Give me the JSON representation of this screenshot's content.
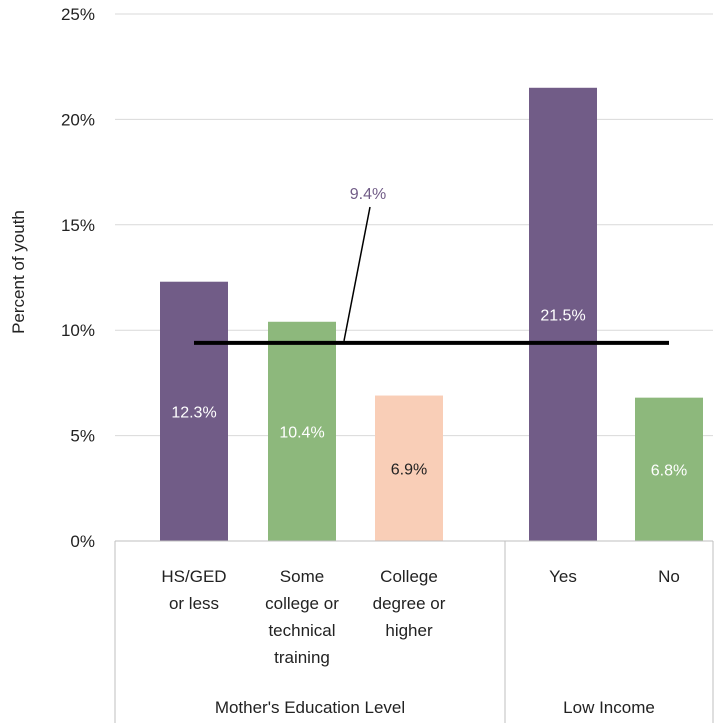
{
  "chart_data": {
    "type": "bar",
    "ylabel": "Percent of youth",
    "ylim": [
      0,
      25
    ],
    "y_ticks": [
      "0%",
      "5%",
      "10%",
      "15%",
      "20%",
      "25%"
    ],
    "grid": true,
    "groups": [
      {
        "label": "Mother's Education Level",
        "categories": [
          {
            "lines": [
              "HS/GED",
              "or less"
            ],
            "value": 12.3,
            "value_label": "12.3%",
            "color": "#715c87",
            "label_color": "#ffffff"
          },
          {
            "lines": [
              "Some",
              "college or",
              "technical",
              "training"
            ],
            "value": 10.4,
            "value_label": "10.4%",
            "color": "#8db87c",
            "label_color": "#ffffff"
          },
          {
            "lines": [
              "College",
              "degree or",
              "higher"
            ],
            "value": 6.9,
            "value_label": "6.9%",
            "color": "#f9ceb7",
            "label_color": "#222222"
          }
        ]
      },
      {
        "label": "Low Income",
        "categories": [
          {
            "lines": [
              "Yes"
            ],
            "value": 21.5,
            "value_label": "21.5%",
            "color": "#715c87",
            "label_color": "#ffffff"
          },
          {
            "lines": [
              "No"
            ],
            "value": 6.8,
            "value_label": "6.8%",
            "color": "#8db87c",
            "label_color": "#ffffff"
          }
        ]
      }
    ],
    "reference_line": {
      "value": 9.4,
      "label": "9.4%",
      "color": "#000000",
      "label_color": "#715c87"
    }
  }
}
